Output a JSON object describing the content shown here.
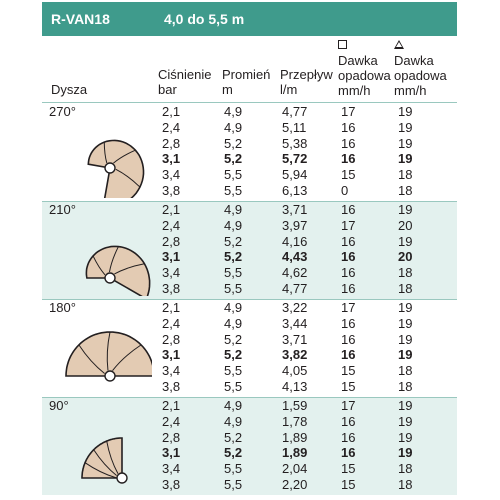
{
  "title": {
    "model": "R-VAN18",
    "range": "4,0 do 5,5 m"
  },
  "columns": {
    "nozzle": "Dysza",
    "pressure": [
      "Ciśnienie",
      "bar"
    ],
    "radius": [
      "Promień",
      "m"
    ],
    "flow": [
      "Przepływ",
      "l/m"
    ],
    "rate_square": [
      "Dawka",
      "opadowa",
      "mm/h"
    ],
    "rate_triangle": [
      "Dawka",
      "opadowa",
      "mm/h"
    ]
  },
  "groups": [
    {
      "angle": "270°",
      "rows": [
        [
          "2,1",
          "4,9",
          "4,77",
          "17",
          "19"
        ],
        [
          "2,4",
          "4,9",
          "5,11",
          "16",
          "19"
        ],
        [
          "2,8",
          "5,2",
          "5,38",
          "16",
          "19"
        ],
        [
          "3,1",
          "5,2",
          "5,72",
          "16",
          "19"
        ],
        [
          "3,4",
          "5,5",
          "5,94",
          "15",
          "18"
        ],
        [
          "3,8",
          "5,5",
          "6,13",
          "0",
          "18"
        ]
      ]
    },
    {
      "angle": "210°",
      "rows": [
        [
          "2,1",
          "4,9",
          "3,71",
          "16",
          "19"
        ],
        [
          "2,4",
          "4,9",
          "3,97",
          "17",
          "20"
        ],
        [
          "2,8",
          "5,2",
          "4,16",
          "16",
          "19"
        ],
        [
          "3,1",
          "5,2",
          "4,43",
          "16",
          "20"
        ],
        [
          "3,4",
          "5,5",
          "4,62",
          "16",
          "18"
        ],
        [
          "3,8",
          "5,5",
          "4,77",
          "16",
          "18"
        ]
      ]
    },
    {
      "angle": "180°",
      "rows": [
        [
          "2,1",
          "4,9",
          "3,22",
          "17",
          "19"
        ],
        [
          "2,4",
          "4,9",
          "3,44",
          "16",
          "19"
        ],
        [
          "2,8",
          "5,2",
          "3,71",
          "16",
          "19"
        ],
        [
          "3,1",
          "5,2",
          "3,82",
          "16",
          "19"
        ],
        [
          "3,4",
          "5,5",
          "4,05",
          "15",
          "18"
        ],
        [
          "3,8",
          "5,5",
          "4,13",
          "15",
          "18"
        ]
      ]
    },
    {
      "angle": "90°",
      "rows": [
        [
          "2,1",
          "4,9",
          "1,59",
          "17",
          "19"
        ],
        [
          "2,4",
          "4,9",
          "1,78",
          "16",
          "19"
        ],
        [
          "2,8",
          "5,2",
          "1,89",
          "16",
          "19"
        ],
        [
          "3,1",
          "5,2",
          "1,89",
          "16",
          "19"
        ],
        [
          "3,4",
          "5,5",
          "2,04",
          "15",
          "18"
        ],
        [
          "3,8",
          "5,5",
          "2,20",
          "15",
          "18"
        ]
      ]
    }
  ],
  "highlight_row_index": 3,
  "colors": {
    "header": "#3f9b8c",
    "shade": "#e3f1ee",
    "fan": "#e3cbb3",
    "outline": "#231f20"
  }
}
